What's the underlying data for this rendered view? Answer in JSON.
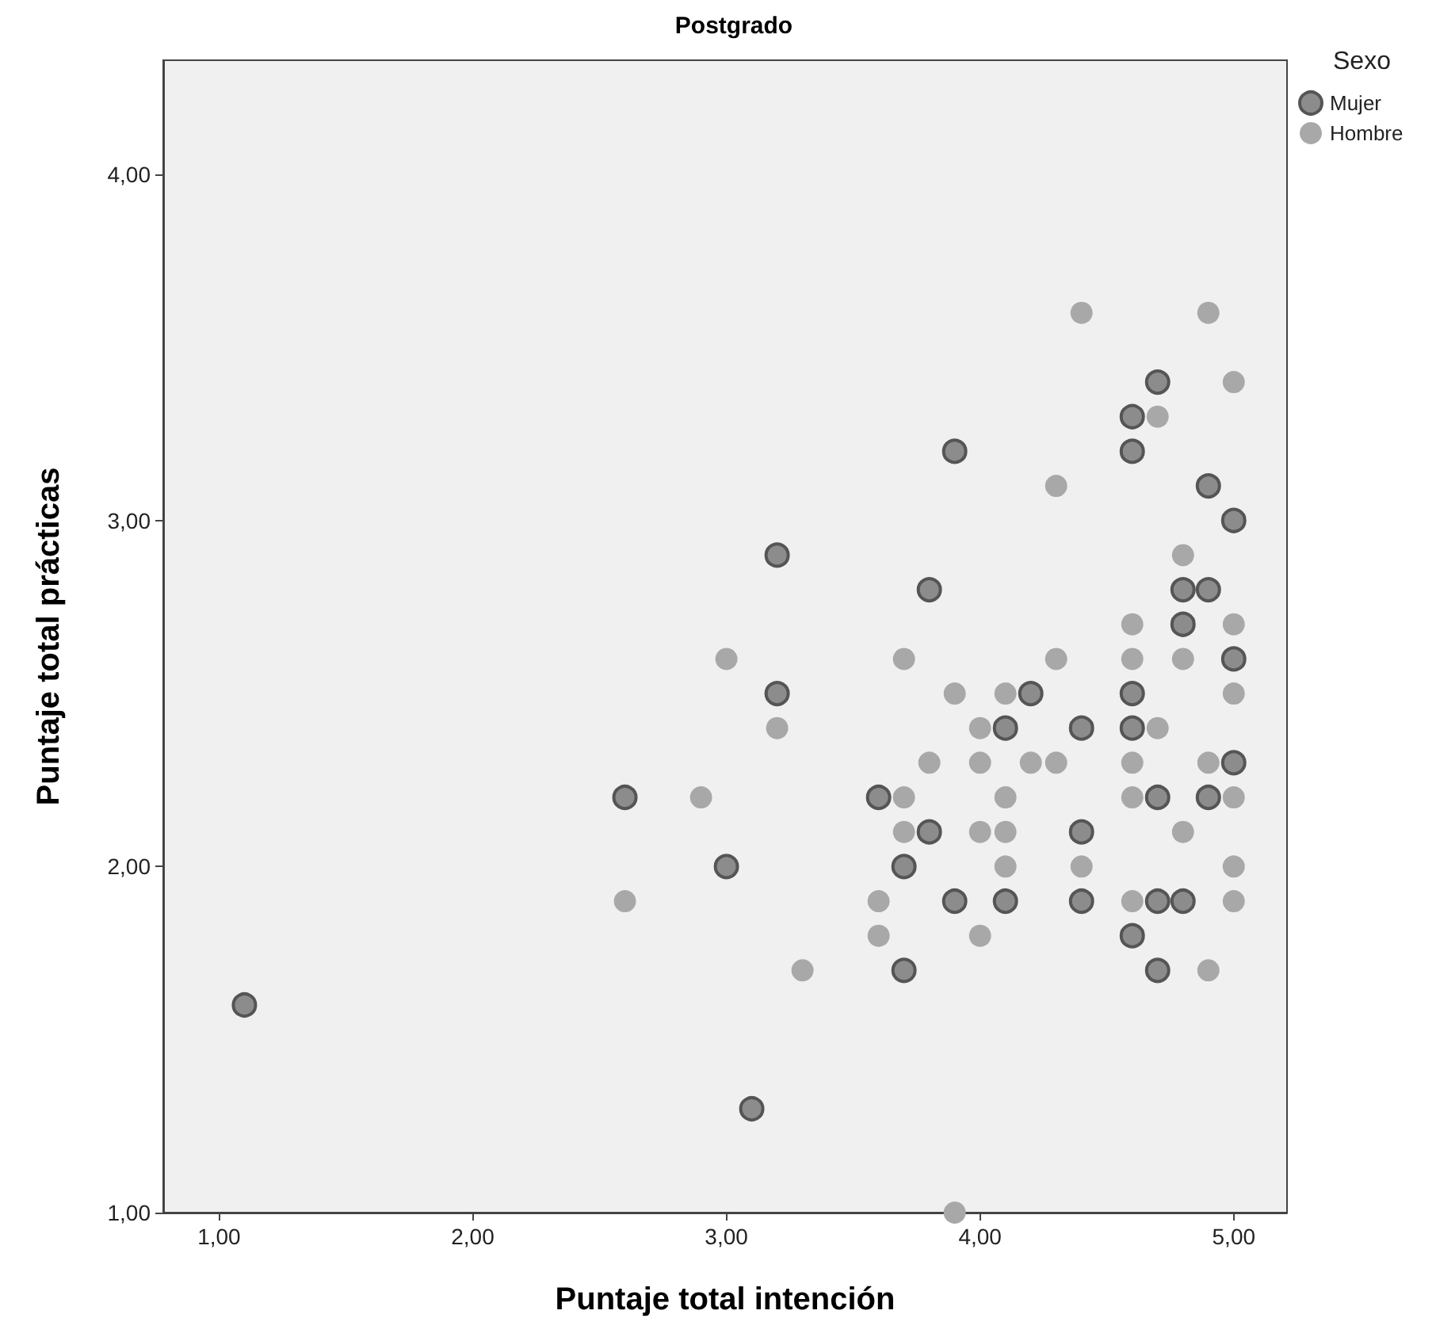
{
  "chart_data": {
    "type": "scatter",
    "title": "Postgrado",
    "xlabel": "Puntaje total intención",
    "ylabel": "Puntaje total prácticas",
    "legend_title": "Sexo",
    "series": [
      {
        "name": "Mujer",
        "color": "#8c8c8c",
        "x": [
          1.1,
          2.6,
          3.0,
          3.1,
          3.2,
          3.2,
          3.6,
          3.7,
          3.7,
          3.8,
          3.8,
          3.9,
          3.9,
          4.1,
          4.1,
          4.2,
          4.4,
          4.4,
          4.4,
          4.6,
          4.6,
          4.6,
          4.6,
          4.6,
          4.7,
          4.7,
          4.7,
          4.7,
          4.8,
          4.8,
          4.8,
          4.9,
          4.9,
          4.9,
          5.0,
          5.0,
          5.0
        ],
        "values": [
          1.6,
          2.2,
          2.0,
          1.3,
          2.9,
          2.5,
          2.2,
          2.0,
          1.7,
          2.8,
          2.1,
          3.2,
          1.9,
          2.4,
          1.9,
          2.5,
          2.4,
          2.1,
          1.9,
          3.3,
          3.2,
          2.5,
          2.4,
          1.8,
          3.4,
          2.2,
          1.9,
          1.7,
          2.8,
          2.7,
          1.9,
          3.1,
          2.8,
          2.2,
          3.0,
          2.6,
          2.3
        ]
      },
      {
        "name": "Hombre",
        "color": "#a8a8a8",
        "x": [
          2.6,
          2.9,
          3.0,
          3.2,
          3.3,
          3.6,
          3.6,
          3.7,
          3.7,
          3.7,
          3.8,
          3.9,
          3.9,
          4.0,
          4.0,
          4.0,
          4.0,
          4.1,
          4.1,
          4.1,
          4.1,
          4.2,
          4.3,
          4.3,
          4.3,
          4.4,
          4.4,
          4.6,
          4.6,
          4.6,
          4.6,
          4.6,
          4.7,
          4.7,
          4.8,
          4.8,
          4.8,
          4.9,
          4.9,
          4.9,
          5.0,
          5.0,
          5.0,
          5.0,
          5.0,
          5.0
        ],
        "values": [
          1.9,
          2.2,
          2.6,
          2.4,
          1.7,
          1.9,
          1.8,
          2.6,
          2.2,
          2.1,
          2.3,
          2.5,
          1.0,
          2.4,
          2.3,
          2.1,
          1.8,
          2.5,
          2.2,
          2.1,
          2.0,
          2.3,
          3.1,
          2.6,
          2.3,
          3.6,
          2.0,
          2.7,
          2.6,
          2.3,
          2.2,
          1.9,
          3.3,
          2.4,
          2.9,
          2.6,
          2.1,
          3.6,
          2.3,
          1.7,
          3.4,
          2.7,
          2.5,
          2.2,
          2.0,
          1.9
        ]
      }
    ],
    "xlim": [
      0.78,
      5.21
    ],
    "ylim": [
      1.0,
      4.33
    ],
    "xticks": [
      {
        "value": 1,
        "label": "1,00"
      },
      {
        "value": 2,
        "label": "2,00"
      },
      {
        "value": 3,
        "label": "3,00"
      },
      {
        "value": 4,
        "label": "4,00"
      },
      {
        "value": 5,
        "label": "5,00"
      }
    ],
    "yticks": [
      {
        "value": 1,
        "label": "1,00"
      },
      {
        "value": 2,
        "label": "2,00"
      },
      {
        "value": 3,
        "label": "3,00"
      },
      {
        "value": 4,
        "label": "4,00"
      }
    ],
    "grid": false,
    "legend": "top right",
    "marker": "circle"
  }
}
